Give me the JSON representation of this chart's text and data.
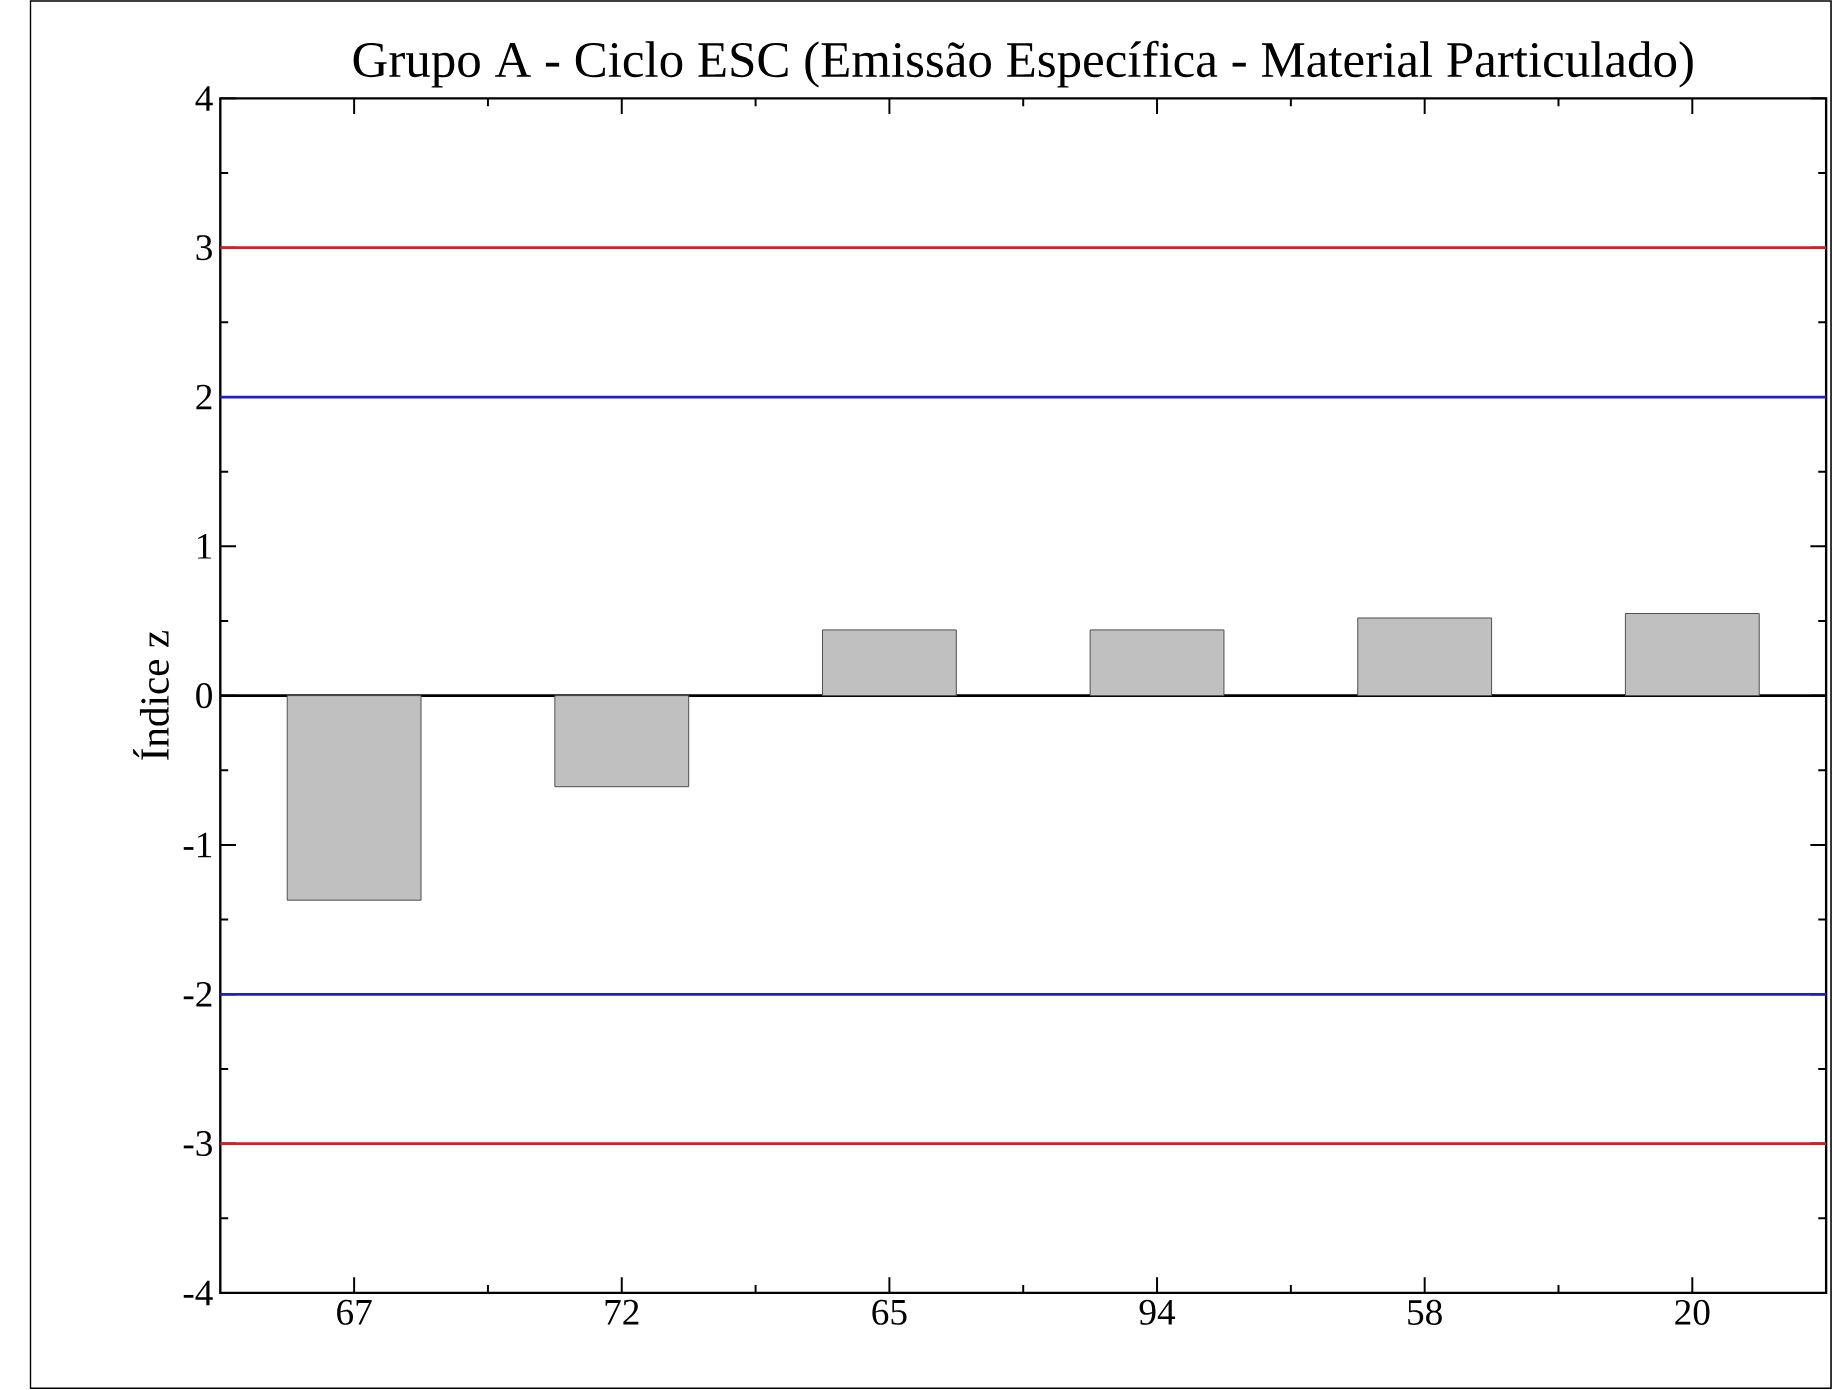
{
  "chart_data": {
    "type": "bar",
    "title": "Grupo A - Ciclo ESC (Emissão Específica - Material Particulado)",
    "ylabel": "Índice z",
    "categories": [
      "67",
      "72",
      "65",
      "94",
      "58",
      "20"
    ],
    "values": [
      -1.37,
      -0.61,
      0.44,
      0.44,
      0.52,
      0.55
    ],
    "color": "#c0c0c0",
    "ylim": [
      -4,
      4
    ],
    "yticks": [
      -4,
      -3,
      -2,
      -1,
      0,
      1,
      2,
      3,
      4
    ],
    "grid": false,
    "ref_lines": [
      {
        "axis": "y",
        "value": 3,
        "color": "#d42020"
      },
      {
        "axis": "y",
        "value": 2,
        "color": "#2020c0"
      },
      {
        "axis": "y",
        "value": 0,
        "color": "#000000"
      },
      {
        "axis": "y",
        "value": -2,
        "color": "#2020c0"
      },
      {
        "axis": "y",
        "value": -3,
        "color": "#d42020"
      }
    ]
  }
}
